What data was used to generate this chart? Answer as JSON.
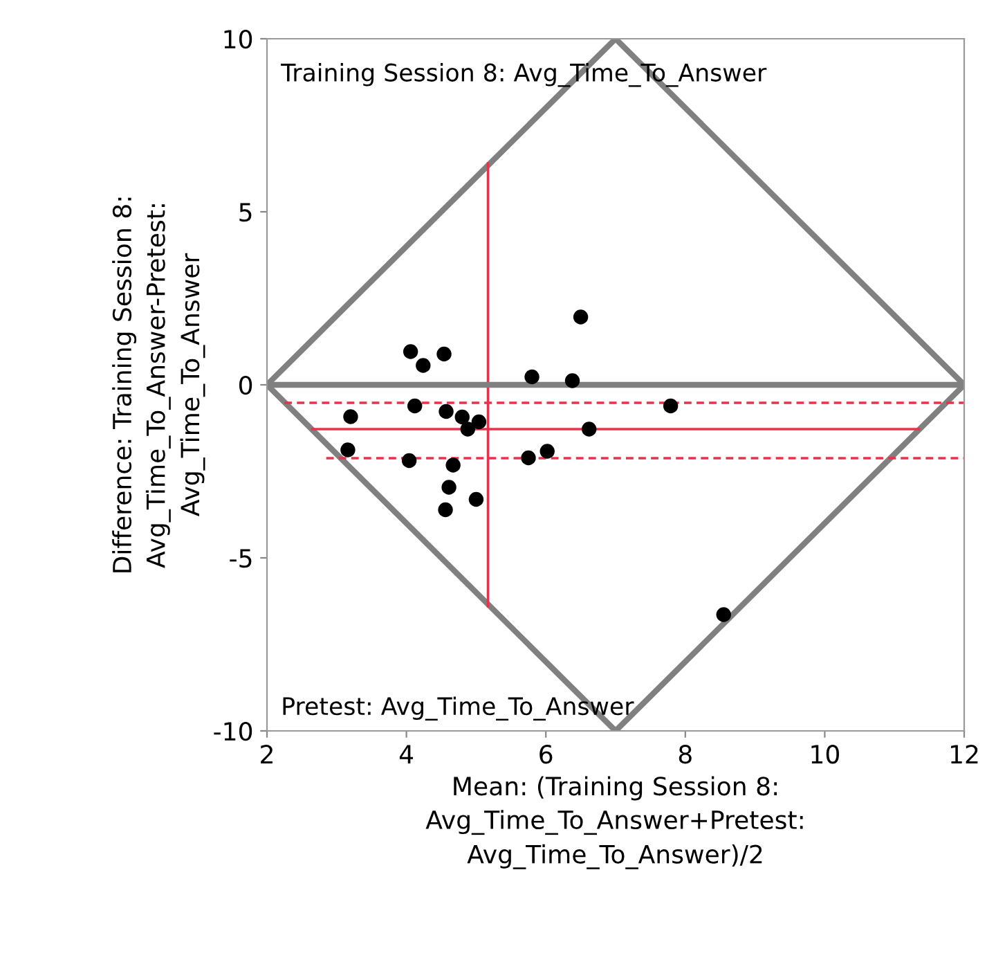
{
  "chart_data": {
    "type": "scatter",
    "xlabel": "Mean: (Training Session 8:\nAvg_Time_To_Answer+Pretest:\nAvg_Time_To_Answer)/2",
    "ylabel": "Difference: Training Session 8:\nAvg_Time_To_Answer-Pretest:\nAvg_Time_To_Answer",
    "annotations": [
      "Training Session 8: Avg_Time_To_Answer",
      "Pretest: Avg_Time_To_Answer"
    ],
    "xlim": [
      2,
      12
    ],
    "ylim": [
      -10,
      10
    ],
    "xticks": [
      2,
      4,
      6,
      8,
      10,
      12
    ],
    "yticks": [
      -10,
      -5,
      0,
      5,
      10
    ],
    "grid": false,
    "legend": false,
    "ref_lines": [
      {
        "axis": "y",
        "value": 0,
        "color": "#808080",
        "line_style": "solid"
      }
    ],
    "series": [
      {
        "type": "line",
        "color": "#808080",
        "line_style": "solid",
        "x": [
          2,
          7
        ],
        "values": [
          0,
          10
        ]
      },
      {
        "type": "line",
        "color": "#808080",
        "line_style": "solid",
        "x": [
          7,
          12
        ],
        "values": [
          10,
          0
        ]
      },
      {
        "type": "line",
        "color": "#808080",
        "line_style": "solid",
        "x": [
          2,
          7
        ],
        "values": [
          0,
          -10
        ]
      },
      {
        "type": "line",
        "color": "#808080",
        "line_style": "solid",
        "x": [
          7,
          12
        ],
        "values": [
          -10,
          0
        ]
      },
      {
        "type": "line",
        "color": "#e8324a",
        "line_style": "solid",
        "x": [
          2.65,
          11.35
        ],
        "values": [
          -1.28,
          -1.28
        ]
      },
      {
        "type": "line",
        "color": "#e8324a",
        "line_style": "dashed",
        "x": [
          2.25,
          12
        ],
        "values": [
          -0.52,
          -0.52
        ]
      },
      {
        "type": "line",
        "color": "#e8324a",
        "line_style": "dashed",
        "x": [
          2.85,
          12
        ],
        "values": [
          -2.12,
          -2.12
        ]
      },
      {
        "type": "line",
        "color": "#e8324a",
        "line_style": "solid",
        "x": [
          5.17,
          5.17
        ],
        "values": [
          6.4,
          -6.4
        ]
      },
      {
        "color": "#000000",
        "marker": "circle",
        "x": [
          4.06,
          4.24,
          4.54,
          4.12,
          3.2,
          3.16,
          4.57,
          4.8,
          4.88,
          5.04,
          4.04,
          4.67,
          4.61,
          4.56,
          5.0,
          5.8,
          6.38,
          6.5,
          5.75,
          6.02,
          6.62,
          7.79,
          8.55
        ],
        "values": [
          0.96,
          0.56,
          0.89,
          -0.61,
          -0.92,
          -1.88,
          -0.77,
          -0.93,
          -1.28,
          -1.07,
          -2.19,
          -2.32,
          -2.96,
          -3.61,
          -3.31,
          0.23,
          0.12,
          1.96,
          -2.11,
          -1.92,
          -1.28,
          -0.61,
          -6.64
        ]
      }
    ]
  }
}
